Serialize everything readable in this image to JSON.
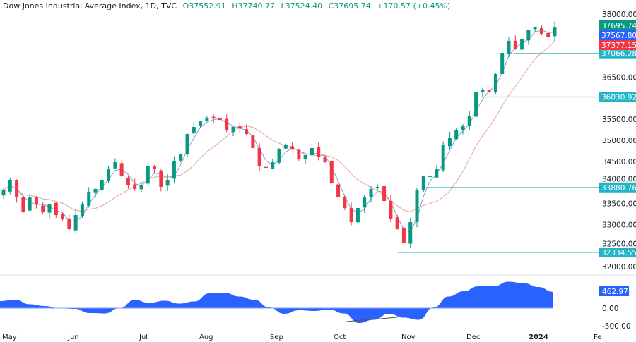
{
  "header": {
    "symbol": "Dow Jones Industrial Average Index, 1D, TVC",
    "open": "O37552.91",
    "high": "H37740.77",
    "low": "L37524.40",
    "close": "C37695.74",
    "change": "+170.57 (+0.45%)"
  },
  "colors": {
    "up": "#089981",
    "down": "#f23645",
    "ma_fast": "#7e9dd6",
    "ma_slow": "#e8a0a0",
    "level": "#5fbcc4",
    "level_badge": "#22b5c8",
    "osc": "#2962ff",
    "last_price": "#089981",
    "ma_fast_badge": "#2962ff",
    "ma_slow_badge": "#f23645"
  },
  "chart_data": {
    "type": "candlestick",
    "price_axis": {
      "ticks": [
        "38000.00",
        "36500.00",
        "35500.00",
        "35000.00",
        "34500.00",
        "34000.00",
        "33500.00",
        "33000.00",
        "32500.00",
        "32000.00"
      ],
      "tick_values": [
        38000,
        36500,
        35500,
        35000,
        34500,
        34000,
        33500,
        33000,
        32500,
        32000
      ],
      "range": [
        32000,
        38000
      ]
    },
    "time_axis": {
      "ticks": [
        "May",
        "Jun",
        "Jul",
        "Aug",
        "Sep",
        "Oct",
        "Nov",
        "Dec",
        "2024",
        "Fe"
      ]
    },
    "closes": [
      33810,
      34061,
      33642,
      33307,
      33642,
      33475,
      33307,
      33475,
      33223,
      33140,
      32888,
      33223,
      33475,
      33777,
      33844,
      34061,
      34313,
      34480,
      34145,
      33944,
      33844,
      33944,
      34397,
      34313,
      33894,
      34061,
      34514,
      34681,
      35150,
      35318,
      35452,
      35520,
      35520,
      35486,
      35235,
      35318,
      35285,
      35150,
      34816,
      34397,
      34346,
      34480,
      34782,
      34900,
      34782,
      34564,
      34648,
      34816,
      34614,
      34480,
      33978,
      33642,
      33391,
      33056,
      33391,
      33642,
      33844,
      33894,
      33559,
      33140,
      32888,
      32553,
      33056,
      33810,
      34145,
      34145,
      34313,
      34900,
      35067,
      35235,
      35352,
      35570,
      36156,
      36190,
      36156,
      36575,
      37078,
      37363,
      37162,
      37413,
      37615,
      37698,
      37531,
      37464,
      37695.74
    ],
    "price_badges": {
      "last": "37695.74",
      "ma_fast": "37567.80",
      "ma_slow": "37377.15"
    },
    "levels": [
      {
        "value": 37066.28,
        "label": "37066.28"
      },
      {
        "value": 36030.92,
        "label": "36030.92"
      },
      {
        "value": 33880.76,
        "label": "33880.76"
      },
      {
        "value": 32334.55,
        "label": "32334.55"
      }
    ],
    "oscillator": {
      "values": [
        200,
        240,
        110,
        60,
        -10,
        -20,
        -140,
        -150,
        0,
        230,
        150,
        210,
        130,
        190,
        420,
        440,
        330,
        240,
        20,
        -160,
        -60,
        -80,
        -40,
        -150,
        -420,
        -330,
        -160,
        -270,
        -330,
        20,
        330,
        480,
        620,
        620,
        750,
        710,
        600,
        462.97
      ],
      "last": "462.97",
      "ticks": [
        "0.00",
        "-500.00"
      ],
      "tick_values": [
        0,
        -500
      ]
    }
  }
}
